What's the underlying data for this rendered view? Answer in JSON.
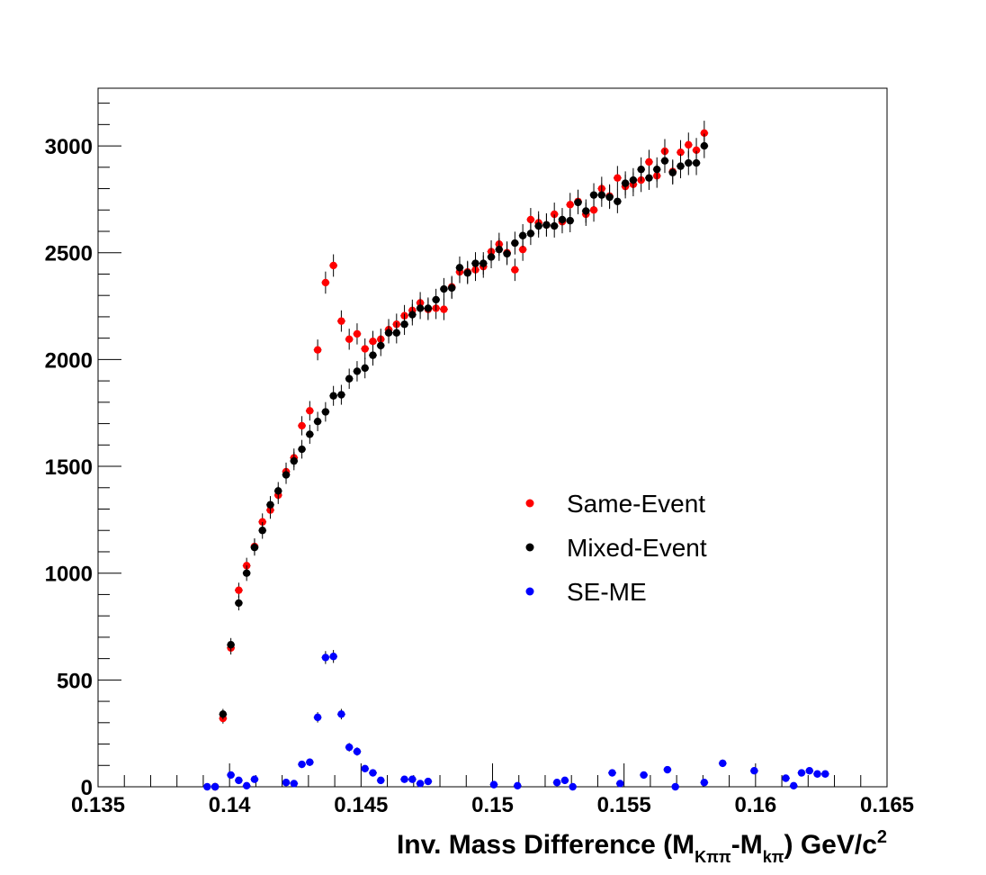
{
  "chart_data": {
    "type": "scatter",
    "title": "",
    "xlabel": {
      "prefix": "Inv. Mass Difference (M",
      "sub1": "Kππ",
      "mid": "-M",
      "sub2": "kπ",
      "suffix": ") GeV/c",
      "sup": "2"
    },
    "ylabel": "",
    "xlim": [
      0.135,
      0.165
    ],
    "ylim": [
      0,
      3270
    ],
    "x_ticks": [
      "0.135",
      "0.14",
      "0.145",
      "0.15",
      "0.155",
      "0.16",
      "0.165"
    ],
    "y_ticks": [
      "0",
      "500",
      "1000",
      "1500",
      "2000",
      "2500",
      "3000"
    ],
    "legend_position": "center-right",
    "bin_width": 0.0003,
    "series": [
      {
        "name": "Same-Event",
        "color": "#ff0000",
        "points": [
          [
            0.13945,
            0
          ],
          [
            0.13975,
            320
          ],
          [
            0.14005,
            650
          ],
          [
            0.14035,
            920
          ],
          [
            0.14065,
            1035
          ],
          [
            0.14095,
            1125
          ],
          [
            0.14125,
            1240
          ],
          [
            0.14155,
            1295
          ],
          [
            0.14185,
            1365
          ],
          [
            0.14215,
            1475
          ],
          [
            0.14245,
            1540
          ],
          [
            0.14275,
            1690
          ],
          [
            0.14305,
            1760
          ],
          [
            0.14335,
            2045
          ],
          [
            0.14365,
            2360
          ],
          [
            0.14395,
            2440
          ],
          [
            0.14425,
            2180
          ],
          [
            0.14455,
            2095
          ],
          [
            0.14485,
            2120
          ],
          [
            0.14515,
            2050
          ],
          [
            0.14545,
            2085
          ],
          [
            0.14575,
            2095
          ],
          [
            0.14605,
            2140
          ],
          [
            0.14635,
            2165
          ],
          [
            0.14665,
            2205
          ],
          [
            0.14695,
            2230
          ],
          [
            0.14725,
            2265
          ],
          [
            0.14755,
            2235
          ],
          [
            0.14785,
            2240
          ],
          [
            0.14815,
            2235
          ],
          [
            0.14845,
            2340
          ],
          [
            0.14875,
            2410
          ],
          [
            0.14905,
            2410
          ],
          [
            0.14935,
            2420
          ],
          [
            0.14965,
            2435
          ],
          [
            0.14995,
            2505
          ],
          [
            0.15025,
            2540
          ],
          [
            0.15055,
            2500
          ],
          [
            0.15085,
            2420
          ],
          [
            0.15115,
            2515
          ],
          [
            0.15145,
            2655
          ],
          [
            0.15175,
            2640
          ],
          [
            0.15205,
            2630
          ],
          [
            0.15235,
            2680
          ],
          [
            0.15265,
            2645
          ],
          [
            0.15295,
            2725
          ],
          [
            0.15325,
            2740
          ],
          [
            0.15355,
            2680
          ],
          [
            0.15385,
            2700
          ],
          [
            0.15415,
            2800
          ],
          [
            0.15445,
            2765
          ],
          [
            0.15475,
            2850
          ],
          [
            0.15505,
            2810
          ],
          [
            0.15535,
            2820
          ],
          [
            0.15565,
            2840
          ],
          [
            0.15595,
            2925
          ],
          [
            0.15625,
            2860
          ],
          [
            0.15655,
            2975
          ],
          [
            0.15685,
            2880
          ],
          [
            0.15715,
            2970
          ],
          [
            0.15745,
            3005
          ],
          [
            0.15775,
            2980
          ],
          [
            0.15805,
            3060
          ]
        ]
      },
      {
        "name": "Mixed-Event",
        "color": "#000000",
        "points": [
          [
            0.13945,
            0
          ],
          [
            0.13975,
            340
          ],
          [
            0.14005,
            665
          ],
          [
            0.14035,
            860
          ],
          [
            0.14065,
            1000
          ],
          [
            0.14095,
            1120
          ],
          [
            0.14125,
            1200
          ],
          [
            0.14155,
            1320
          ],
          [
            0.14185,
            1385
          ],
          [
            0.14215,
            1460
          ],
          [
            0.14245,
            1525
          ],
          [
            0.14275,
            1580
          ],
          [
            0.14305,
            1650
          ],
          [
            0.14335,
            1710
          ],
          [
            0.14365,
            1755
          ],
          [
            0.14395,
            1830
          ],
          [
            0.14425,
            1835
          ],
          [
            0.14455,
            1910
          ],
          [
            0.14485,
            1945
          ],
          [
            0.14515,
            1960
          ],
          [
            0.14545,
            2020
          ],
          [
            0.14575,
            2065
          ],
          [
            0.14605,
            2125
          ],
          [
            0.14635,
            2125
          ],
          [
            0.14665,
            2165
          ],
          [
            0.14695,
            2210
          ],
          [
            0.14725,
            2240
          ],
          [
            0.14755,
            2240
          ],
          [
            0.14785,
            2280
          ],
          [
            0.14815,
            2330
          ],
          [
            0.14845,
            2335
          ],
          [
            0.14875,
            2430
          ],
          [
            0.14905,
            2405
          ],
          [
            0.14935,
            2450
          ],
          [
            0.14965,
            2450
          ],
          [
            0.14995,
            2480
          ],
          [
            0.15025,
            2515
          ],
          [
            0.15055,
            2495
          ],
          [
            0.15085,
            2545
          ],
          [
            0.15115,
            2580
          ],
          [
            0.15145,
            2590
          ],
          [
            0.15175,
            2625
          ],
          [
            0.15205,
            2630
          ],
          [
            0.15235,
            2625
          ],
          [
            0.15265,
            2655
          ],
          [
            0.15295,
            2650
          ],
          [
            0.15325,
            2735
          ],
          [
            0.15355,
            2695
          ],
          [
            0.15385,
            2770
          ],
          [
            0.15415,
            2770
          ],
          [
            0.15445,
            2760
          ],
          [
            0.15475,
            2740
          ],
          [
            0.15505,
            2825
          ],
          [
            0.15535,
            2840
          ],
          [
            0.15565,
            2890
          ],
          [
            0.15595,
            2850
          ],
          [
            0.15625,
            2890
          ],
          [
            0.15655,
            2930
          ],
          [
            0.15685,
            2875
          ],
          [
            0.15715,
            2905
          ],
          [
            0.15745,
            2920
          ],
          [
            0.15775,
            2920
          ],
          [
            0.15805,
            3000
          ]
        ]
      },
      {
        "name": "SE-ME",
        "color": "#0000ff",
        "points": [
          [
            0.13915,
            0
          ],
          [
            0.13945,
            0
          ],
          [
            0.14005,
            55
          ],
          [
            0.14035,
            30
          ],
          [
            0.14065,
            5
          ],
          [
            0.14095,
            35
          ],
          [
            0.14215,
            20
          ],
          [
            0.14245,
            15
          ],
          [
            0.14275,
            105
          ],
          [
            0.14305,
            115
          ],
          [
            0.14335,
            325
          ],
          [
            0.14365,
            605
          ],
          [
            0.14395,
            610
          ],
          [
            0.14425,
            340
          ],
          [
            0.14455,
            185
          ],
          [
            0.14485,
            165
          ],
          [
            0.14515,
            85
          ],
          [
            0.14545,
            65
          ],
          [
            0.14575,
            30
          ],
          [
            0.14665,
            35
          ],
          [
            0.14695,
            35
          ],
          [
            0.14725,
            15
          ],
          [
            0.14755,
            25
          ],
          [
            0.15005,
            10
          ],
          [
            0.15095,
            5
          ],
          [
            0.15245,
            20
          ],
          [
            0.15275,
            30
          ],
          [
            0.15305,
            0
          ],
          [
            0.15455,
            65
          ],
          [
            0.15485,
            15
          ],
          [
            0.15575,
            55
          ],
          [
            0.15665,
            80
          ],
          [
            0.15695,
            0
          ],
          [
            0.15805,
            20
          ],
          [
            0.15875,
            110
          ],
          [
            0.15995,
            75
          ],
          [
            0.16115,
            40
          ],
          [
            0.16145,
            5
          ],
          [
            0.16175,
            65
          ],
          [
            0.16205,
            75
          ],
          [
            0.16235,
            60
          ],
          [
            0.16265,
            60
          ]
        ]
      }
    ]
  }
}
